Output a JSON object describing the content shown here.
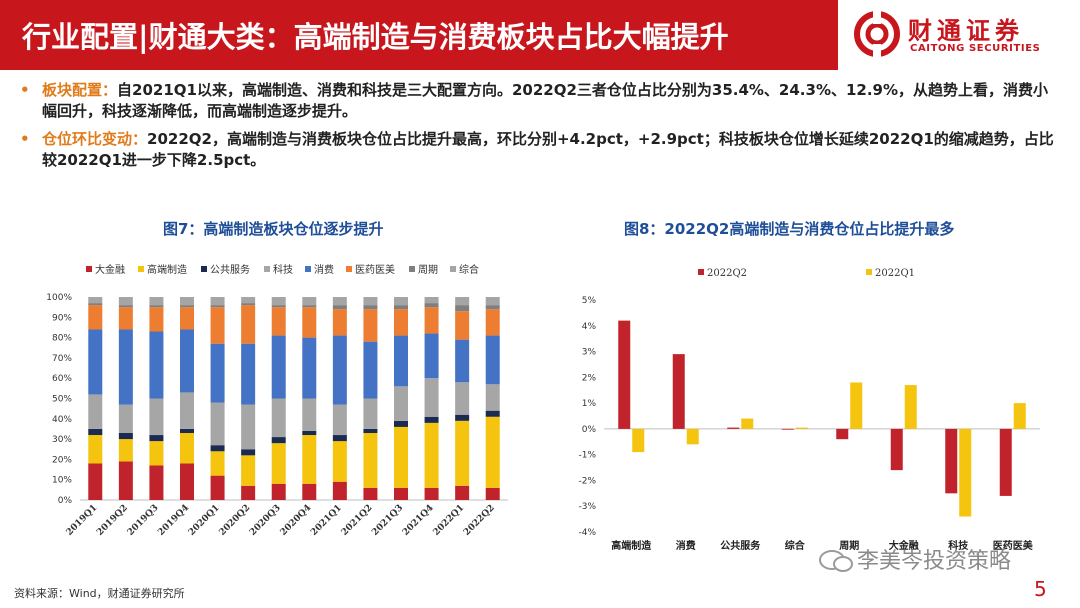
{
  "header": {
    "title": "行业配置|财通大类：高端制造与消费板块占比大幅提升",
    "logo_cn": "财通证券",
    "logo_en": "CAITONG SECURITIES"
  },
  "bullets": [
    {
      "label": "板块配置：",
      "text": "自2021Q1以来，高端制造、消费和科技是三大配置方向。2022Q2三者仓位占比分别为35.4%、24.3%、12.9%，从趋势上看，消费小幅回升，科技逐渐降低，而高端制造逐步提升。"
    },
    {
      "label": "仓位环比变动：",
      "text": "2022Q2，高端制造与消费板块仓位占比提升最高，环比分别+4.2pct，+2.9pct；科技板块仓位增长延续2022Q1的缩减趋势，占比较2022Q1进一步下降2.5pct。"
    }
  ],
  "colors": {
    "header_bg": "#c8161d",
    "accent_orange": "#e07b1a",
    "chart_title_blue": "#1f4e99",
    "bullet_text": "#222222"
  },
  "chart_data": [
    {
      "type": "bar",
      "stacked": true,
      "title": "图7：高端制造板块仓位逐步提升",
      "categories": [
        "2019Q1",
        "2019Q2",
        "2019Q3",
        "2019Q4",
        "2020Q1",
        "2020Q2",
        "2020Q3",
        "2020Q4",
        "2021Q1",
        "2021Q2",
        "2021Q3",
        "2021Q4",
        "2022Q1",
        "2022Q2"
      ],
      "yticks": [
        "0%",
        "10%",
        "20%",
        "30%",
        "40%",
        "50%",
        "60%",
        "70%",
        "80%",
        "90%",
        "100%"
      ],
      "ylim": [
        0,
        100
      ],
      "legend_position": "top",
      "series": [
        {
          "name": "大金融",
          "color": "#c0232b",
          "values": [
            18,
            19,
            17,
            18,
            12,
            7,
            8,
            8,
            9,
            6,
            6,
            6,
            7,
            6
          ]
        },
        {
          "name": "高端制造",
          "color": "#f5c40f",
          "values": [
            14,
            11,
            12,
            15,
            12,
            15,
            20,
            24,
            20,
            27,
            30,
            32,
            32,
            35
          ]
        },
        {
          "name": "公共服务",
          "color": "#1a2a50",
          "values": [
            3,
            3,
            3,
            2,
            3,
            3,
            3,
            2,
            3,
            2,
            3,
            3,
            3,
            3
          ]
        },
        {
          "name": "科技",
          "color": "#a6a6a6",
          "values": [
            17,
            14,
            18,
            18,
            21,
            22,
            19,
            16,
            15,
            15,
            17,
            19,
            16,
            13
          ]
        },
        {
          "name": "消费",
          "color": "#4472c4",
          "values": [
            32,
            37,
            33,
            31,
            29,
            30,
            31,
            30,
            34,
            28,
            25,
            22,
            21,
            24
          ]
        },
        {
          "name": "医药医美",
          "color": "#ed7d31",
          "values": [
            12,
            11,
            12,
            11,
            18,
            19,
            14,
            15,
            13,
            16,
            13,
            13,
            14,
            13
          ]
        },
        {
          "name": "周期",
          "color": "#7f7f7f",
          "values": [
            1,
            1,
            1,
            1,
            1,
            1,
            1,
            1,
            2,
            2,
            2,
            2,
            3,
            2
          ]
        },
        {
          "name": "综合",
          "color": "#a5a5a5",
          "values": [
            3,
            4,
            4,
            4,
            4,
            3,
            4,
            4,
            4,
            4,
            4,
            3,
            4,
            4
          ]
        }
      ]
    },
    {
      "type": "bar",
      "title": "图8：2022Q2高端制造与消费仓位占比提升最多",
      "categories": [
        "高端制造",
        "消费",
        "公共服务",
        "综合",
        "周期",
        "大金融",
        "科技",
        "医药医美"
      ],
      "yticks": [
        "5%",
        "4%",
        "3%",
        "2%",
        "1%",
        "0%",
        "-1%",
        "-2%",
        "-3%",
        "-4%"
      ],
      "ylim": [
        -4,
        5
      ],
      "legend_position": "top",
      "series": [
        {
          "name": "2022Q2",
          "color": "#c0232b",
          "values": [
            4.2,
            2.9,
            0.05,
            0.0,
            -0.4,
            -1.6,
            -2.5,
            -2.6
          ]
        },
        {
          "name": "2022Q1",
          "color": "#f5c40f",
          "values": [
            -0.9,
            -0.6,
            0.4,
            0.05,
            1.8,
            1.7,
            -3.4,
            1.0
          ]
        }
      ]
    }
  ],
  "footer": {
    "source": "资料来源：Wind，财通证券研究所",
    "watermark": "李美岑投资策略",
    "page": "5"
  }
}
